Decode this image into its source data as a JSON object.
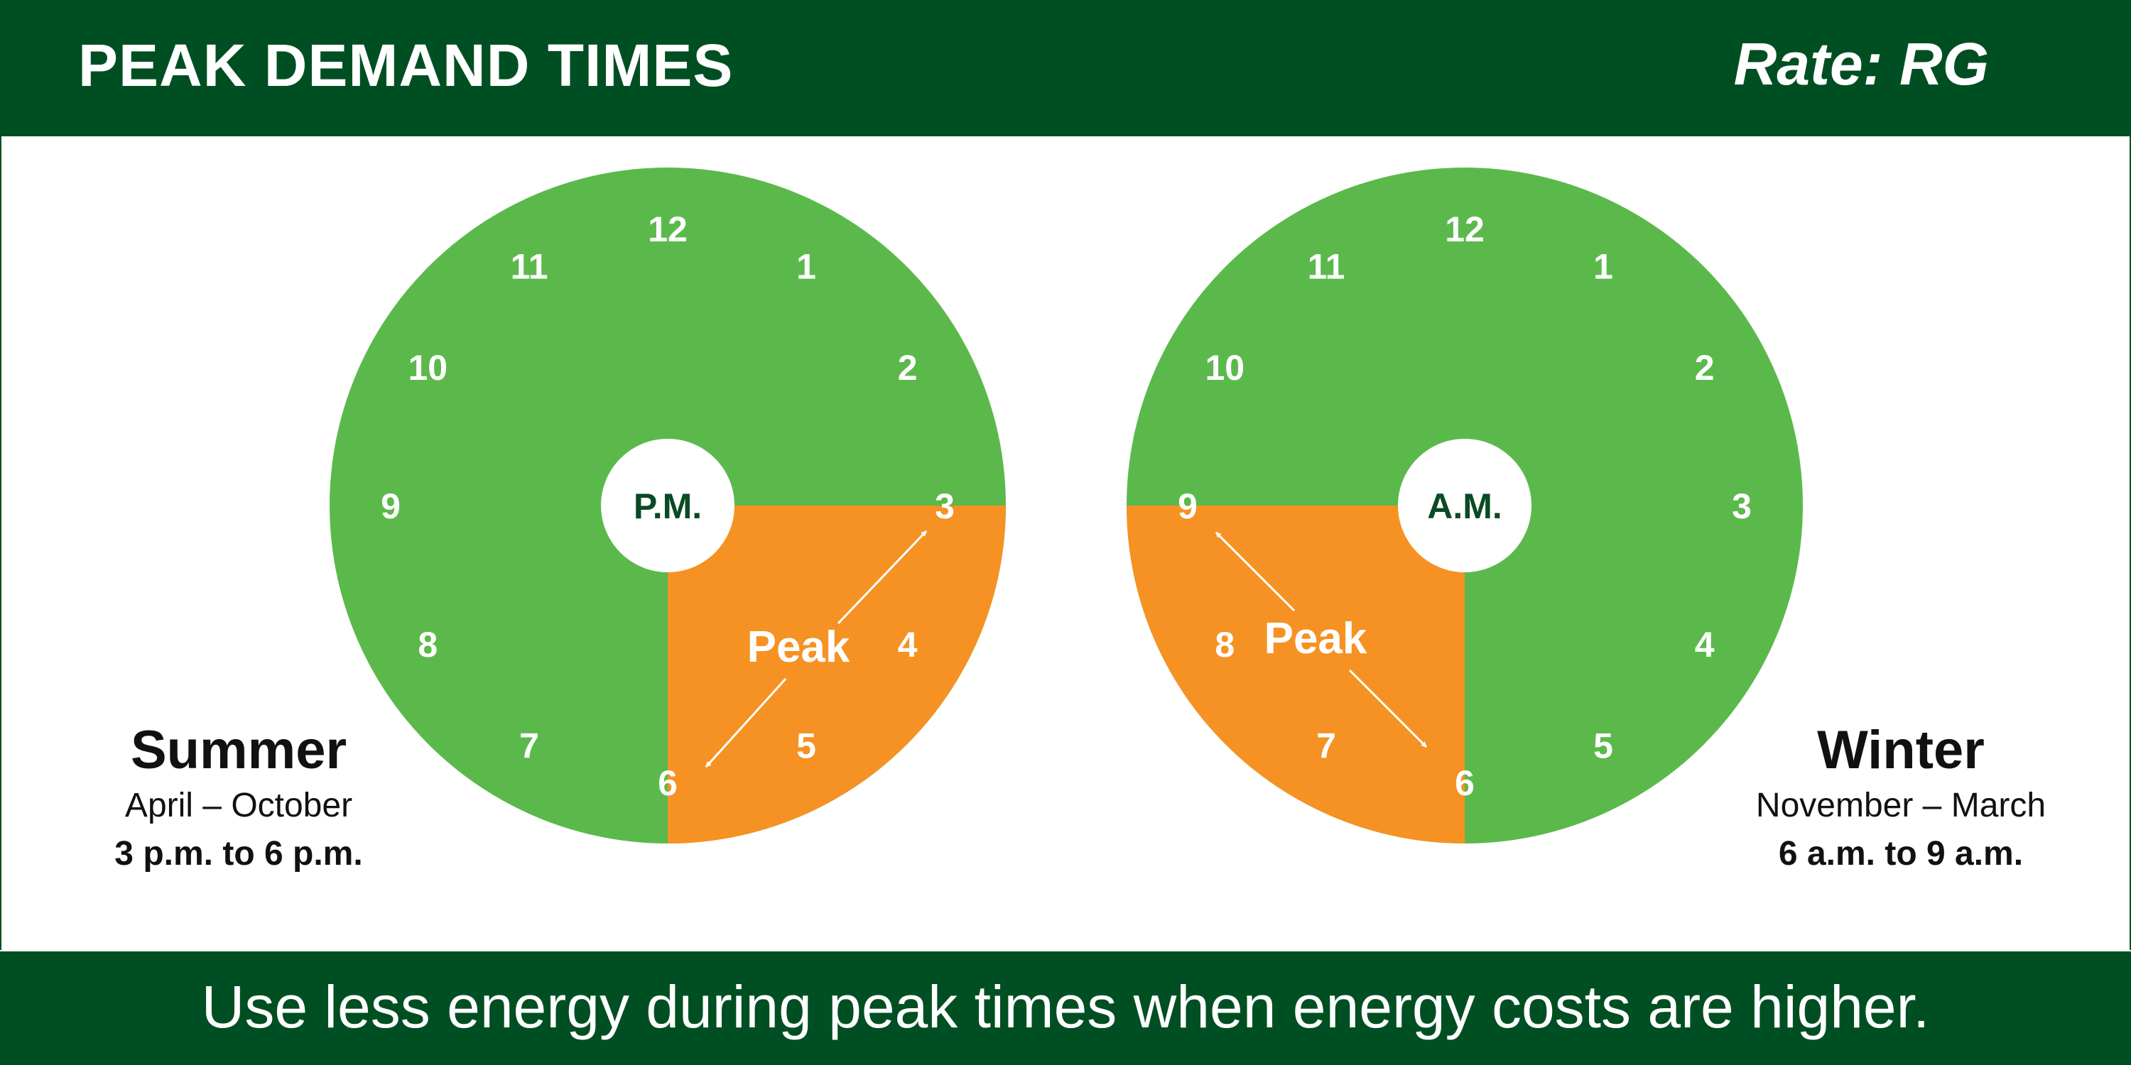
{
  "header": {
    "title": "PEAK DEMAND TIMES",
    "rate": "Rate: RG"
  },
  "colors": {
    "dark_green": "#004f22",
    "clock_green": "#5bb94b",
    "peak_orange": "#f59223",
    "white": "#ffffff"
  },
  "clocks": [
    {
      "id": "summer",
      "center_label": "P.M.",
      "peak_label": "Peak",
      "numbers": [
        "12",
        "1",
        "2",
        "3",
        "4",
        "5",
        "6",
        "7",
        "8",
        "9",
        "10",
        "11"
      ],
      "peak_start_hour": 3,
      "peak_end_hour": 6,
      "season": "Summer",
      "months": "April – October",
      "hours": "3 p.m. to 6 p.m."
    },
    {
      "id": "winter",
      "center_label": "A.M.",
      "peak_label": "Peak",
      "numbers": [
        "12",
        "1",
        "2",
        "3",
        "4",
        "5",
        "6",
        "7",
        "8",
        "9",
        "10",
        "11"
      ],
      "peak_start_hour": 6,
      "peak_end_hour": 9,
      "season": "Winter",
      "months": "November – March",
      "hours": "6 a.m. to 9 a.m."
    }
  ],
  "footer": {
    "text": "Use less energy during peak times when energy costs are higher."
  }
}
